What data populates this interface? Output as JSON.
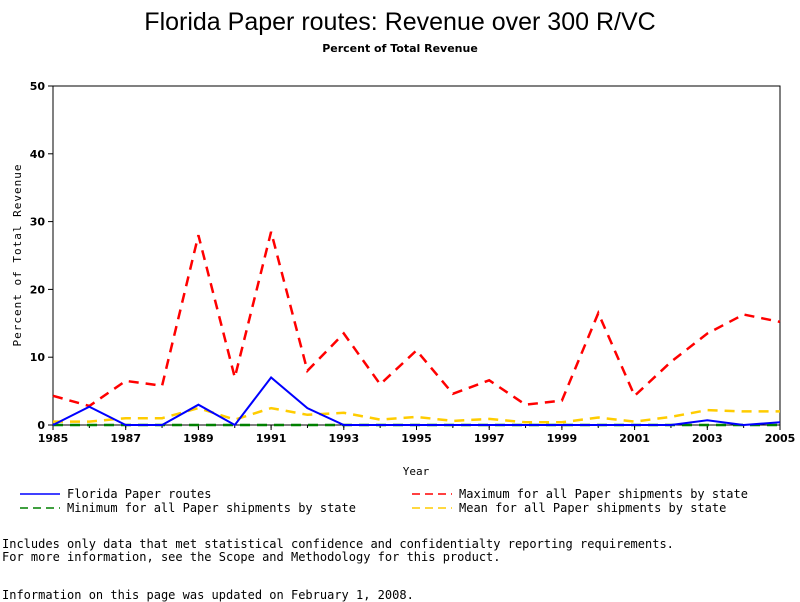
{
  "chart_data": {
    "type": "line",
    "title": "Florida Paper routes: Revenue over 300 R/VC",
    "subtitle": "Percent of Total Revenue",
    "xlabel": "Year",
    "ylabel": "Percent of Total Revenue",
    "xlim": [
      1985,
      2005
    ],
    "ylim": [
      0,
      50
    ],
    "xticks": [
      1985,
      1987,
      1989,
      1991,
      1993,
      1995,
      1997,
      1999,
      2001,
      2003,
      2005
    ],
    "yticks": [
      0,
      10,
      20,
      30,
      40,
      50
    ],
    "grid": false,
    "legend_position": "bottom",
    "x": [
      1985,
      1986,
      1987,
      1988,
      1989,
      1990,
      1991,
      1992,
      1993,
      1994,
      1995,
      1996,
      1997,
      1998,
      1999,
      2000,
      2001,
      2002,
      2003,
      2004,
      2005
    ],
    "series": [
      {
        "name": "Florida Paper routes",
        "color": "#0000ff",
        "style": "solid",
        "values": [
          0,
          2.7,
          0,
          0,
          3,
          0,
          7,
          2.5,
          0,
          0,
          0,
          0,
          0,
          0,
          0,
          0,
          0,
          0,
          0.7,
          0,
          0.4
        ]
      },
      {
        "name": "Maximum for all Paper shipments by state",
        "color": "#ff0000",
        "style": "dash",
        "values": [
          4.3,
          2.8,
          6.5,
          5.8,
          28,
          7,
          28.5,
          8,
          13.5,
          6,
          11,
          4.6,
          6.6,
          3,
          3.6,
          16.5,
          4.3,
          9.3,
          13.5,
          16.3,
          15.2
        ]
      },
      {
        "name": "Minimum for all Paper shipments by state",
        "color": "#008000",
        "style": "dash",
        "values": [
          0,
          0,
          0,
          0,
          0,
          0,
          0,
          0,
          0,
          0,
          0,
          0,
          0,
          0,
          0,
          0,
          0,
          0,
          0,
          0,
          0
        ]
      },
      {
        "name": "Mean for all Paper shipments by state",
        "color": "#ffcc00",
        "style": "dash",
        "values": [
          0.5,
          0.5,
          1,
          1,
          2.5,
          0.8,
          2.5,
          1.5,
          1.8,
          0.8,
          1.2,
          0.6,
          0.9,
          0.4,
          0.4,
          1.1,
          0.5,
          1.2,
          2.2,
          2,
          2
        ]
      }
    ]
  },
  "footnotes": {
    "line1": "Includes only data that met statistical confidence and confidentialty reporting requirements.",
    "line2": "For more information, see the Scope and Methodology for this product.",
    "line3": "Information on this page was updated on February 1, 2008."
  }
}
